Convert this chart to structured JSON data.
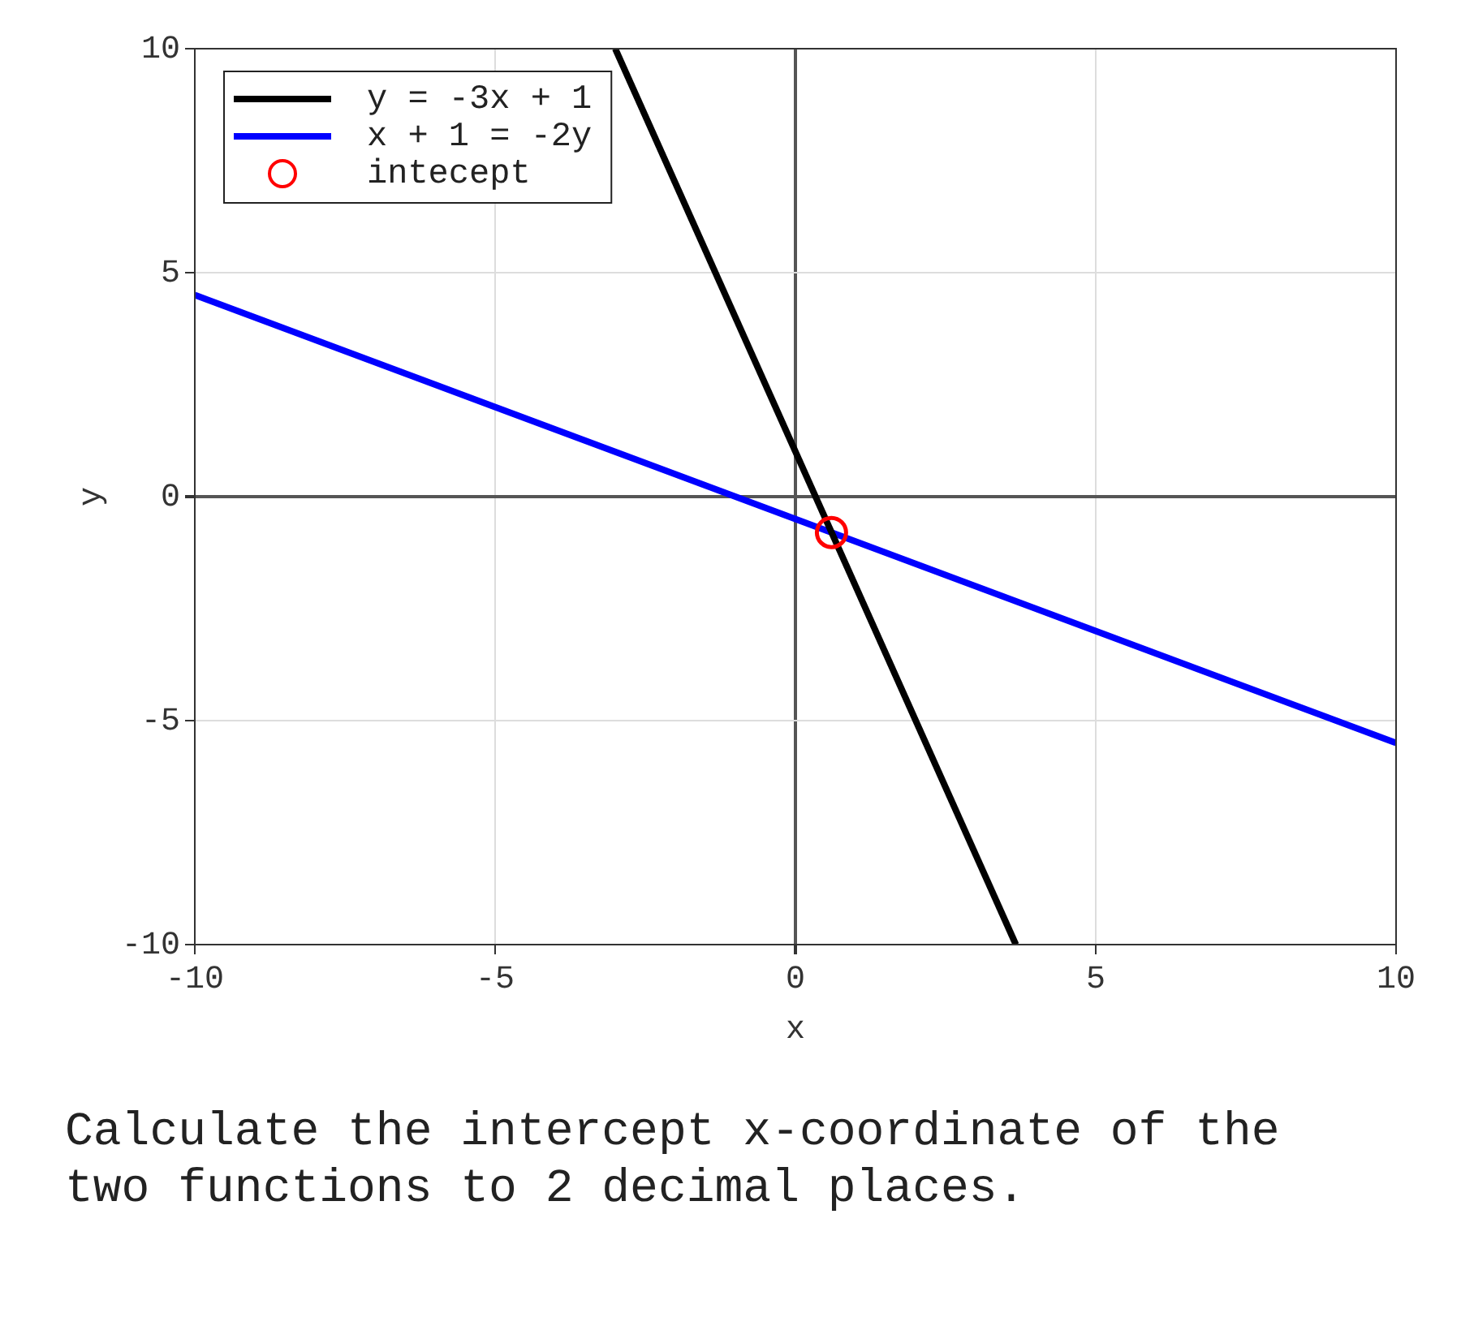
{
  "chart_data": {
    "type": "line",
    "xlabel": "x",
    "ylabel": "y",
    "xlim": [
      -10,
      10
    ],
    "ylim": [
      -10,
      10
    ],
    "xticks": [
      -10,
      -5,
      0,
      5,
      10
    ],
    "yticks": [
      -10,
      -5,
      0,
      5,
      10
    ],
    "grid": true,
    "legend": "top left",
    "series": [
      {
        "name": "y = -3x + 1",
        "color": "#000000",
        "type": "line",
        "marker": "none",
        "x": [
          -3,
          3.67
        ],
        "values": [
          10,
          -10
        ]
      },
      {
        "name": "x + 1 = -2y",
        "color": "#0000ff",
        "type": "line",
        "marker": "none",
        "x": [
          -10,
          10
        ],
        "values": [
          4.5,
          -5.5
        ]
      },
      {
        "name": "intecept",
        "color": "#ff0000",
        "type": "scatter",
        "marker": "circle",
        "x": [
          0.6
        ],
        "values": [
          -0.8
        ]
      }
    ],
    "annotations": [
      "Calculate the intercept x-coordinate of the two functions to 2 decimal places."
    ]
  }
}
